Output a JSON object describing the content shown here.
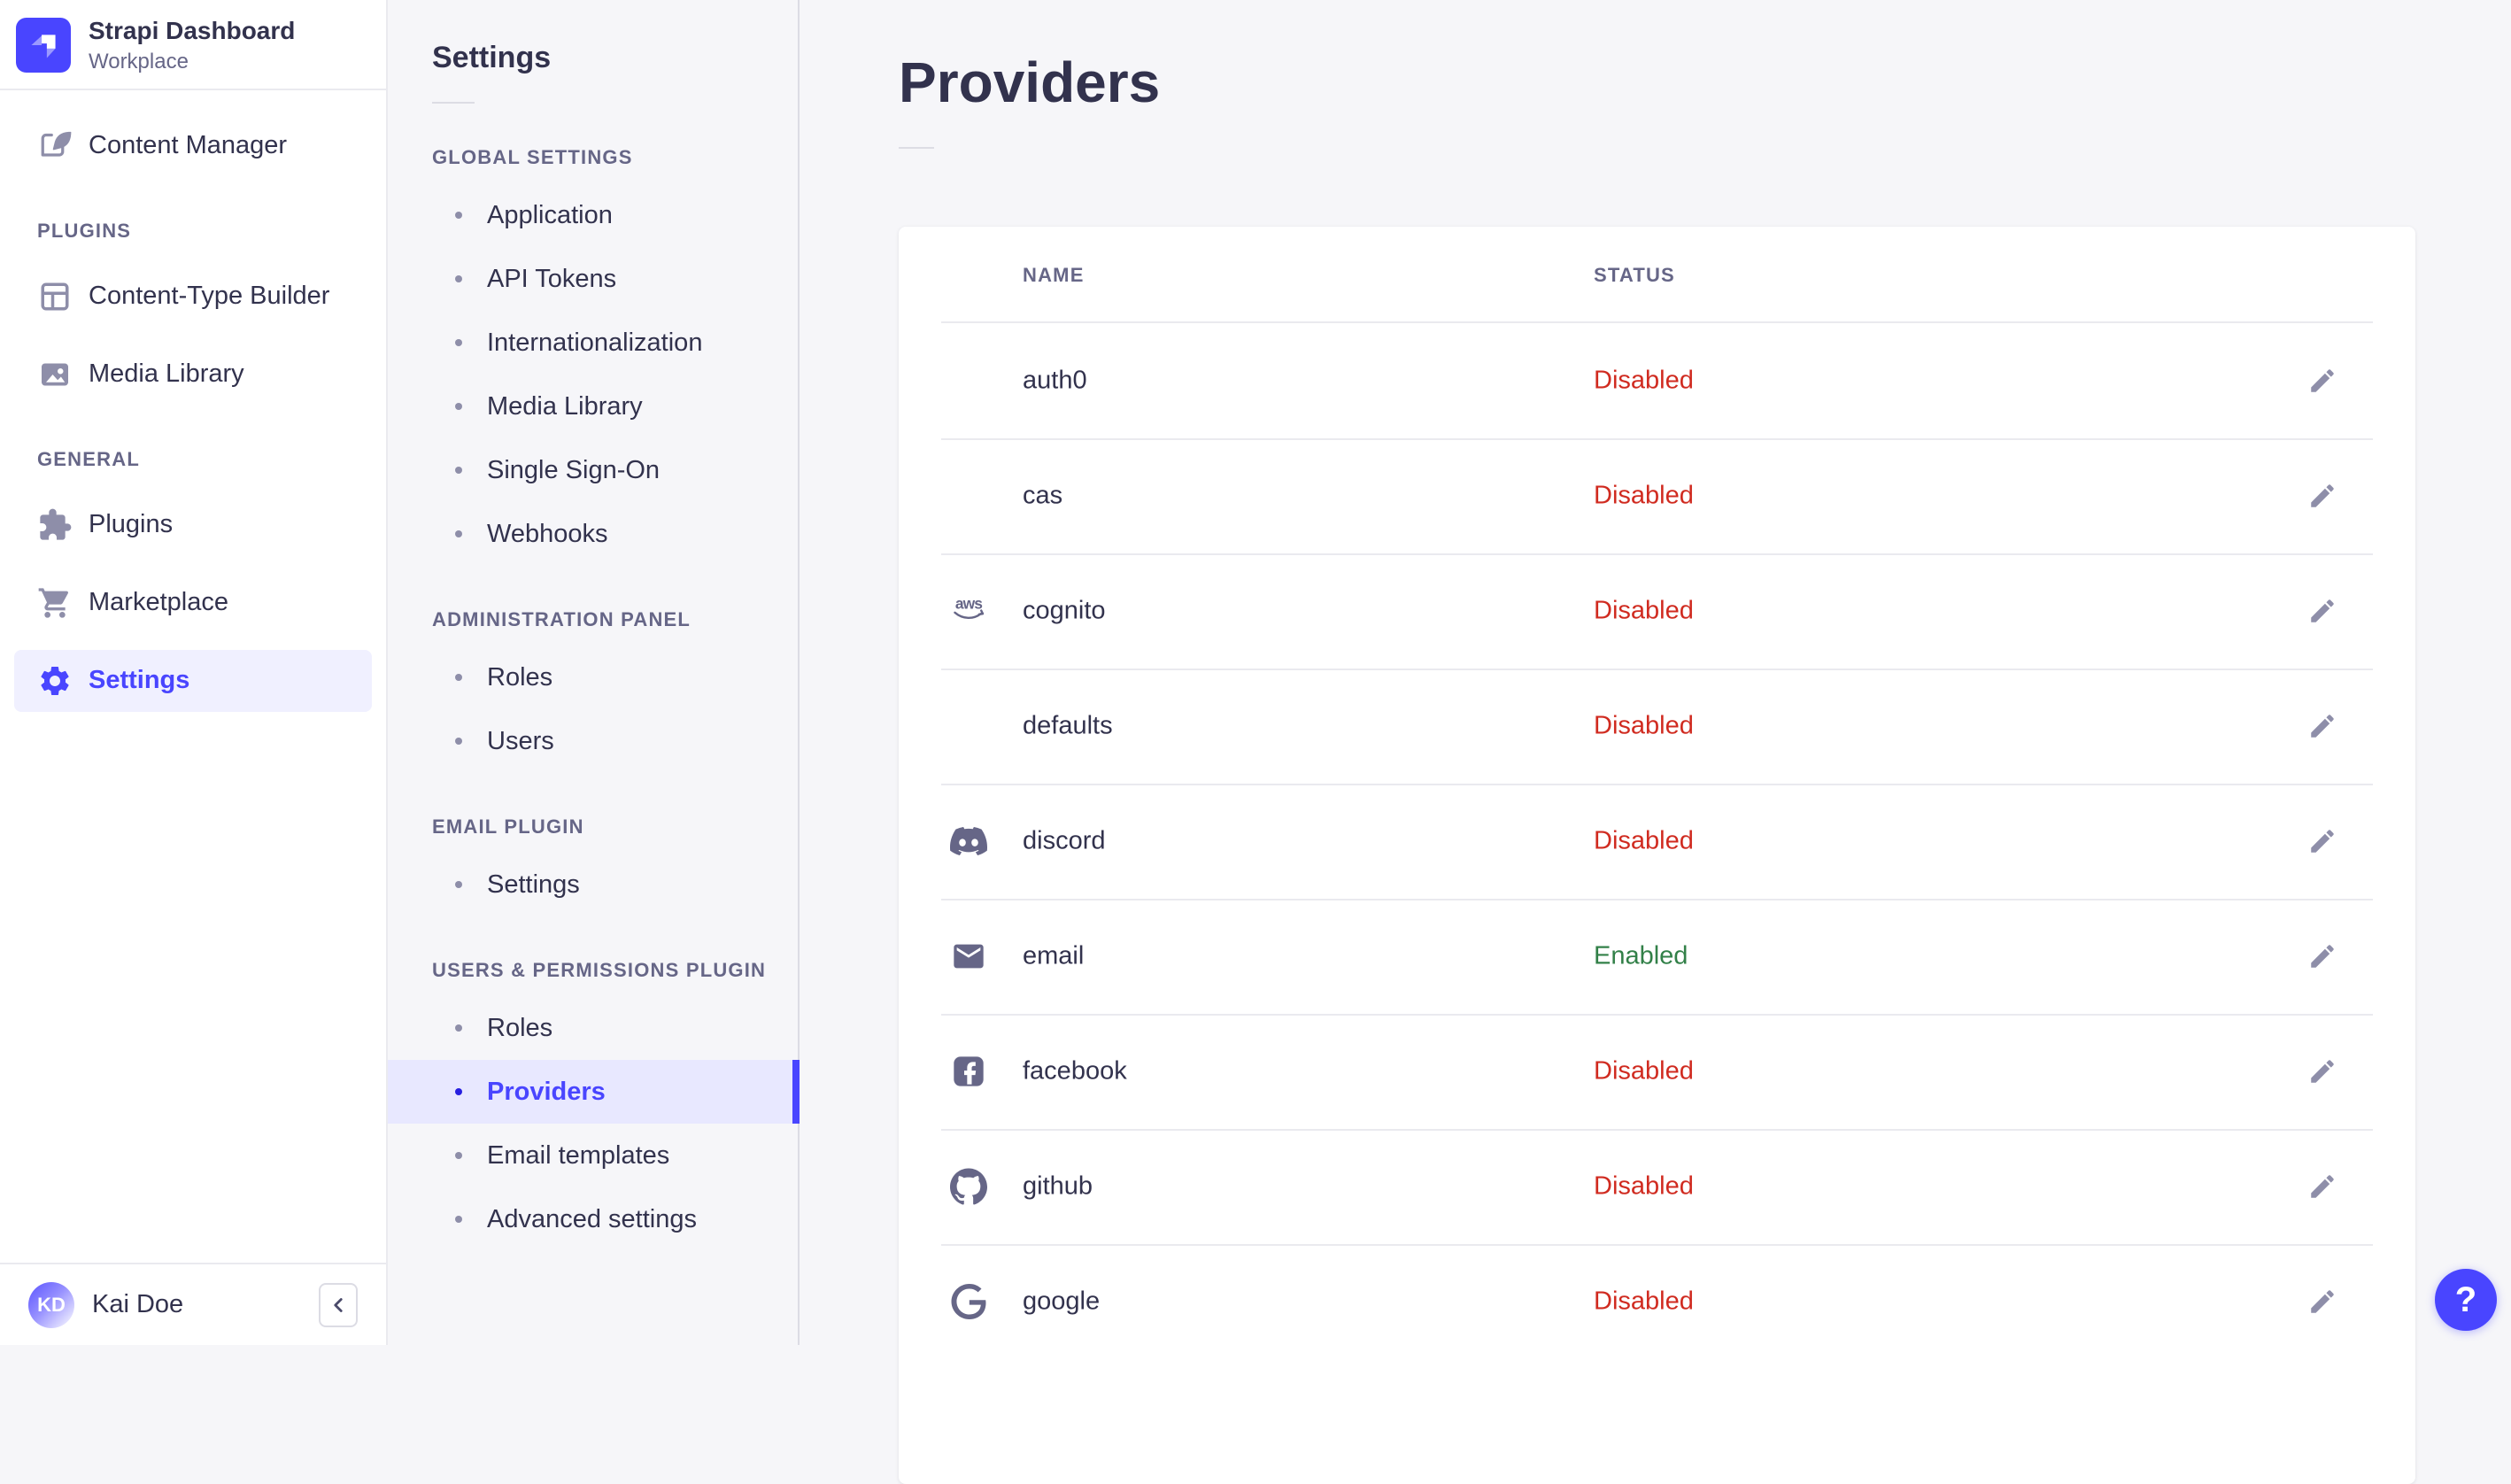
{
  "app": {
    "name": "Strapi Dashboard",
    "workspace": "Workplace",
    "logo_icon": "strapi-logo-icon"
  },
  "left_nav": {
    "groups": [
      {
        "label": null,
        "items": [
          {
            "label": "Content Manager",
            "icon": "content-manager-icon",
            "active": false
          }
        ]
      },
      {
        "label": "PLUGINS",
        "items": [
          {
            "label": "Content-Type Builder",
            "icon": "content-type-builder-icon",
            "active": false
          },
          {
            "label": "Media Library",
            "icon": "media-library-icon",
            "active": false
          }
        ]
      },
      {
        "label": "GENERAL",
        "items": [
          {
            "label": "Plugins",
            "icon": "puzzle-icon",
            "active": false
          },
          {
            "label": "Marketplace",
            "icon": "cart-icon",
            "active": false
          },
          {
            "label": "Settings",
            "icon": "gear-icon",
            "active": true
          }
        ]
      }
    ],
    "user": {
      "initials": "KD",
      "name": "Kai Doe"
    },
    "collapse_icon": "chevron-left-icon"
  },
  "subnav": {
    "title": "Settings",
    "sections": [
      {
        "label": "GLOBAL SETTINGS",
        "items": [
          {
            "label": "Application",
            "active": false
          },
          {
            "label": "API Tokens",
            "active": false
          },
          {
            "label": "Internationalization",
            "active": false
          },
          {
            "label": "Media Library",
            "active": false
          },
          {
            "label": "Single Sign-On",
            "active": false
          },
          {
            "label": "Webhooks",
            "active": false
          }
        ]
      },
      {
        "label": "ADMINISTRATION PANEL",
        "items": [
          {
            "label": "Roles",
            "active": false
          },
          {
            "label": "Users",
            "active": false
          }
        ]
      },
      {
        "label": "EMAIL PLUGIN",
        "items": [
          {
            "label": "Settings",
            "active": false
          }
        ]
      },
      {
        "label": "USERS & PERMISSIONS PLUGIN",
        "items": [
          {
            "label": "Roles",
            "active": false
          },
          {
            "label": "Providers",
            "active": true
          },
          {
            "label": "Email templates",
            "active": false
          },
          {
            "label": "Advanced settings",
            "active": false
          }
        ]
      }
    ]
  },
  "main": {
    "title": "Providers",
    "table": {
      "columns": [
        "NAME",
        "STATUS"
      ],
      "edit_icon": "pencil-icon",
      "rows": [
        {
          "name": "auth0",
          "icon": null,
          "status": "Disabled"
        },
        {
          "name": "cas",
          "icon": null,
          "status": "Disabled"
        },
        {
          "name": "cognito",
          "icon": "aws-icon",
          "status": "Disabled"
        },
        {
          "name": "defaults",
          "icon": null,
          "status": "Disabled"
        },
        {
          "name": "discord",
          "icon": "discord-icon",
          "status": "Disabled"
        },
        {
          "name": "email",
          "icon": "email-icon",
          "status": "Enabled"
        },
        {
          "name": "facebook",
          "icon": "facebook-icon",
          "status": "Disabled"
        },
        {
          "name": "github",
          "icon": "github-icon",
          "status": "Disabled"
        },
        {
          "name": "google",
          "icon": "google-icon",
          "status": "Disabled"
        }
      ]
    },
    "help_label": "?"
  },
  "colors": {
    "primary": "#4945ff",
    "primary_bg": "#f0f0ff",
    "subnav_active_bg": "#e8e8ff",
    "danger": "#d02b20",
    "success": "#328048",
    "text": "#32324d",
    "muted": "#666687",
    "icon_gray": "#8e8ea9",
    "border": "#eaeaef",
    "page_bg": "#f6f6f9"
  }
}
